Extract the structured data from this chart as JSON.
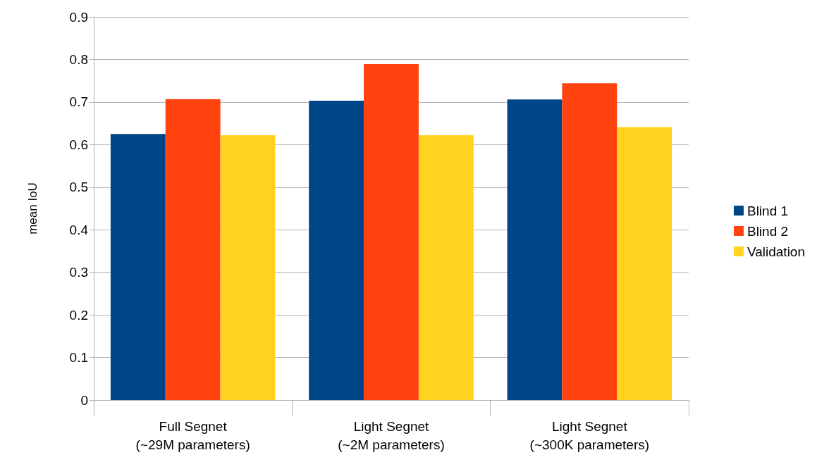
{
  "chart_data": {
    "type": "bar",
    "ylabel": "mean IoU",
    "categories": [
      "Full Segnet\n(~29M parameters)",
      "Light Segnet\n(~2M parameters)",
      "Light Segnet\n(~300K parameters)"
    ],
    "series": [
      {
        "name": "Blind 1",
        "color": "#004586",
        "values": [
          0.625,
          0.703,
          0.706
        ]
      },
      {
        "name": "Blind 2",
        "color": "#ff420e",
        "values": [
          0.707,
          0.789,
          0.744
        ]
      },
      {
        "name": "Validation",
        "color": "#ffd320",
        "values": [
          0.622,
          0.622,
          0.641
        ]
      }
    ],
    "ylim": [
      0,
      0.9
    ],
    "yticks": [
      0,
      0.1,
      0.2,
      0.3,
      0.4,
      0.5,
      0.6,
      0.7,
      0.8,
      0.9
    ],
    "grid": "y",
    "legend": "right"
  }
}
